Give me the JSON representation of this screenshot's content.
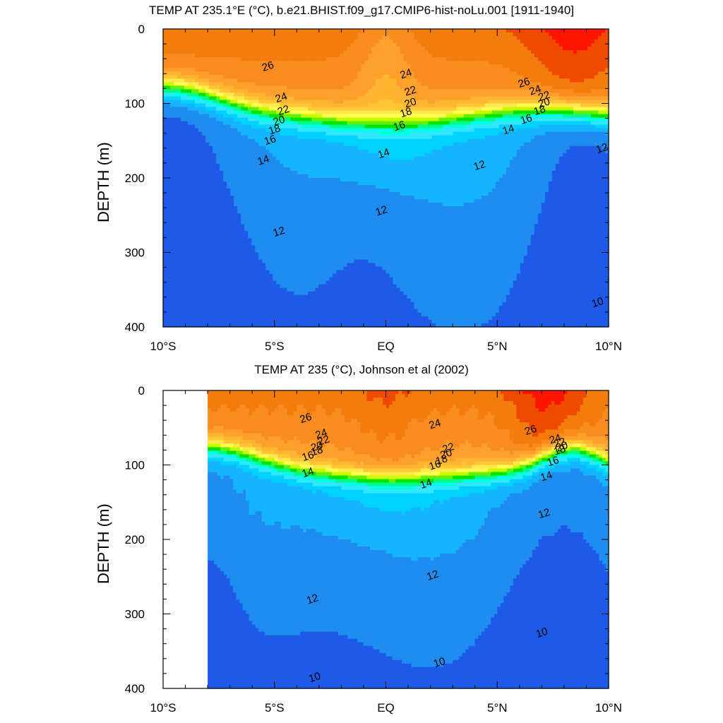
{
  "chart_data": [
    {
      "type": "heatmap",
      "title": "TEMP AT 235.1°E (°C), b.e21.BHIST.f09_g17.CMIP6-hist-noLu.001 [1911-1940]",
      "xlabel": "",
      "ylabel": "DEPTH (m)",
      "x_ticks": [
        "10°S",
        "5°S",
        "EQ",
        "5°N",
        "10°N"
      ],
      "x_range": [
        -10,
        10
      ],
      "y_ticks": [
        "0",
        "100",
        "200",
        "300",
        "400"
      ],
      "y_range": [
        0,
        400
      ],
      "y_inverted": true,
      "x_data_start": -10,
      "contour_interval": 1,
      "contour_labels": [
        {
          "text": "26",
          "x": -5.3,
          "y": 50
        },
        {
          "text": "24",
          "x": -4.7,
          "y": 92
        },
        {
          "text": "22",
          "x": -4.6,
          "y": 109
        },
        {
          "text": "20",
          "x": -4.8,
          "y": 123
        },
        {
          "text": "18",
          "x": -5.0,
          "y": 135
        },
        {
          "text": "16",
          "x": -5.2,
          "y": 149
        },
        {
          "text": "14",
          "x": -5.5,
          "y": 176
        },
        {
          "text": "12",
          "x": -4.8,
          "y": 272
        },
        {
          "text": "24",
          "x": 0.9,
          "y": 60
        },
        {
          "text": "22",
          "x": 1.1,
          "y": 83
        },
        {
          "text": "20",
          "x": 1.1,
          "y": 99
        },
        {
          "text": "18",
          "x": 0.9,
          "y": 112
        },
        {
          "text": "16",
          "x": 0.6,
          "y": 130
        },
        {
          "text": "14",
          "x": -0.1,
          "y": 167
        },
        {
          "text": "12",
          "x": -0.2,
          "y": 244
        },
        {
          "text": "12",
          "x": 4.2,
          "y": 183
        },
        {
          "text": "26",
          "x": 6.2,
          "y": 72
        },
        {
          "text": "24",
          "x": 6.7,
          "y": 82
        },
        {
          "text": "22",
          "x": 7.1,
          "y": 90
        },
        {
          "text": "20",
          "x": 7.1,
          "y": 99
        },
        {
          "text": "18",
          "x": 6.9,
          "y": 109
        },
        {
          "text": "16",
          "x": 6.3,
          "y": 121
        },
        {
          "text": "14",
          "x": 5.5,
          "y": 135
        },
        {
          "text": "12",
          "x": 9.7,
          "y": 160
        },
        {
          "text": "10",
          "x": 9.5,
          "y": 367
        }
      ]
    },
    {
      "type": "heatmap",
      "title": "TEMP AT 235 (°C), Johnson et al (2002)",
      "xlabel": "",
      "ylabel": "DEPTH (m)",
      "x_ticks": [
        "10°S",
        "5°S",
        "EQ",
        "5°N",
        "10°N"
      ],
      "x_range": [
        -10,
        10
      ],
      "y_ticks": [
        "0",
        "100",
        "200",
        "300",
        "400"
      ],
      "y_range": [
        0,
        400
      ],
      "y_inverted": true,
      "x_data_start": -8,
      "contour_interval": 1,
      "contour_labels": [
        {
          "text": "26",
          "x": -3.6,
          "y": 37
        },
        {
          "text": "24",
          "x": -2.9,
          "y": 58
        },
        {
          "text": "22",
          "x": -2.8,
          "y": 67
        },
        {
          "text": "20",
          "x": -3.1,
          "y": 75
        },
        {
          "text": "18",
          "x": -3.1,
          "y": 81
        },
        {
          "text": "16",
          "x": -3.5,
          "y": 88
        },
        {
          "text": "14",
          "x": -3.5,
          "y": 110
        },
        {
          "text": "12",
          "x": -3.3,
          "y": 280
        },
        {
          "text": "10",
          "x": -3.2,
          "y": 385
        },
        {
          "text": "24",
          "x": 2.2,
          "y": 45
        },
        {
          "text": "22",
          "x": 2.8,
          "y": 77
        },
        {
          "text": "20",
          "x": 2.7,
          "y": 85
        },
        {
          "text": "18",
          "x": 2.5,
          "y": 93
        },
        {
          "text": "16",
          "x": 2.2,
          "y": 100
        },
        {
          "text": "14",
          "x": 1.8,
          "y": 125
        },
        {
          "text": "12",
          "x": 2.1,
          "y": 248
        },
        {
          "text": "10",
          "x": 2.4,
          "y": 365
        },
        {
          "text": "26",
          "x": 6.5,
          "y": 53
        },
        {
          "text": "24",
          "x": 7.6,
          "y": 65
        },
        {
          "text": "22",
          "x": 7.8,
          "y": 70
        },
        {
          "text": "20",
          "x": 7.9,
          "y": 75
        },
        {
          "text": "18",
          "x": 7.8,
          "y": 80
        },
        {
          "text": "16",
          "x": 7.5,
          "y": 95
        },
        {
          "text": "14",
          "x": 7.2,
          "y": 115
        },
        {
          "text": "12",
          "x": 7.1,
          "y": 165
        },
        {
          "text": "10",
          "x": 7.0,
          "y": 325
        }
      ]
    }
  ],
  "colors": {
    "t10": "#1e5ae8",
    "t11": "#1e8cf0",
    "t12": "#14b4ff",
    "t13": "#00d2ff",
    "t14": "#32e6ff",
    "t15": "#00ffe6",
    "t16": "#00fa8c",
    "t17": "#00e600",
    "t18": "#64f000",
    "t19": "#c8fa00",
    "t20": "#ffff50",
    "t21": "#ffe84c",
    "t22": "#ffc832",
    "t23": "#ffb432",
    "t24": "#ffa02d",
    "t25": "#f88c1e",
    "t26": "#f47c0c",
    "t27": "#f04a00",
    "t28": "#ff1400"
  }
}
